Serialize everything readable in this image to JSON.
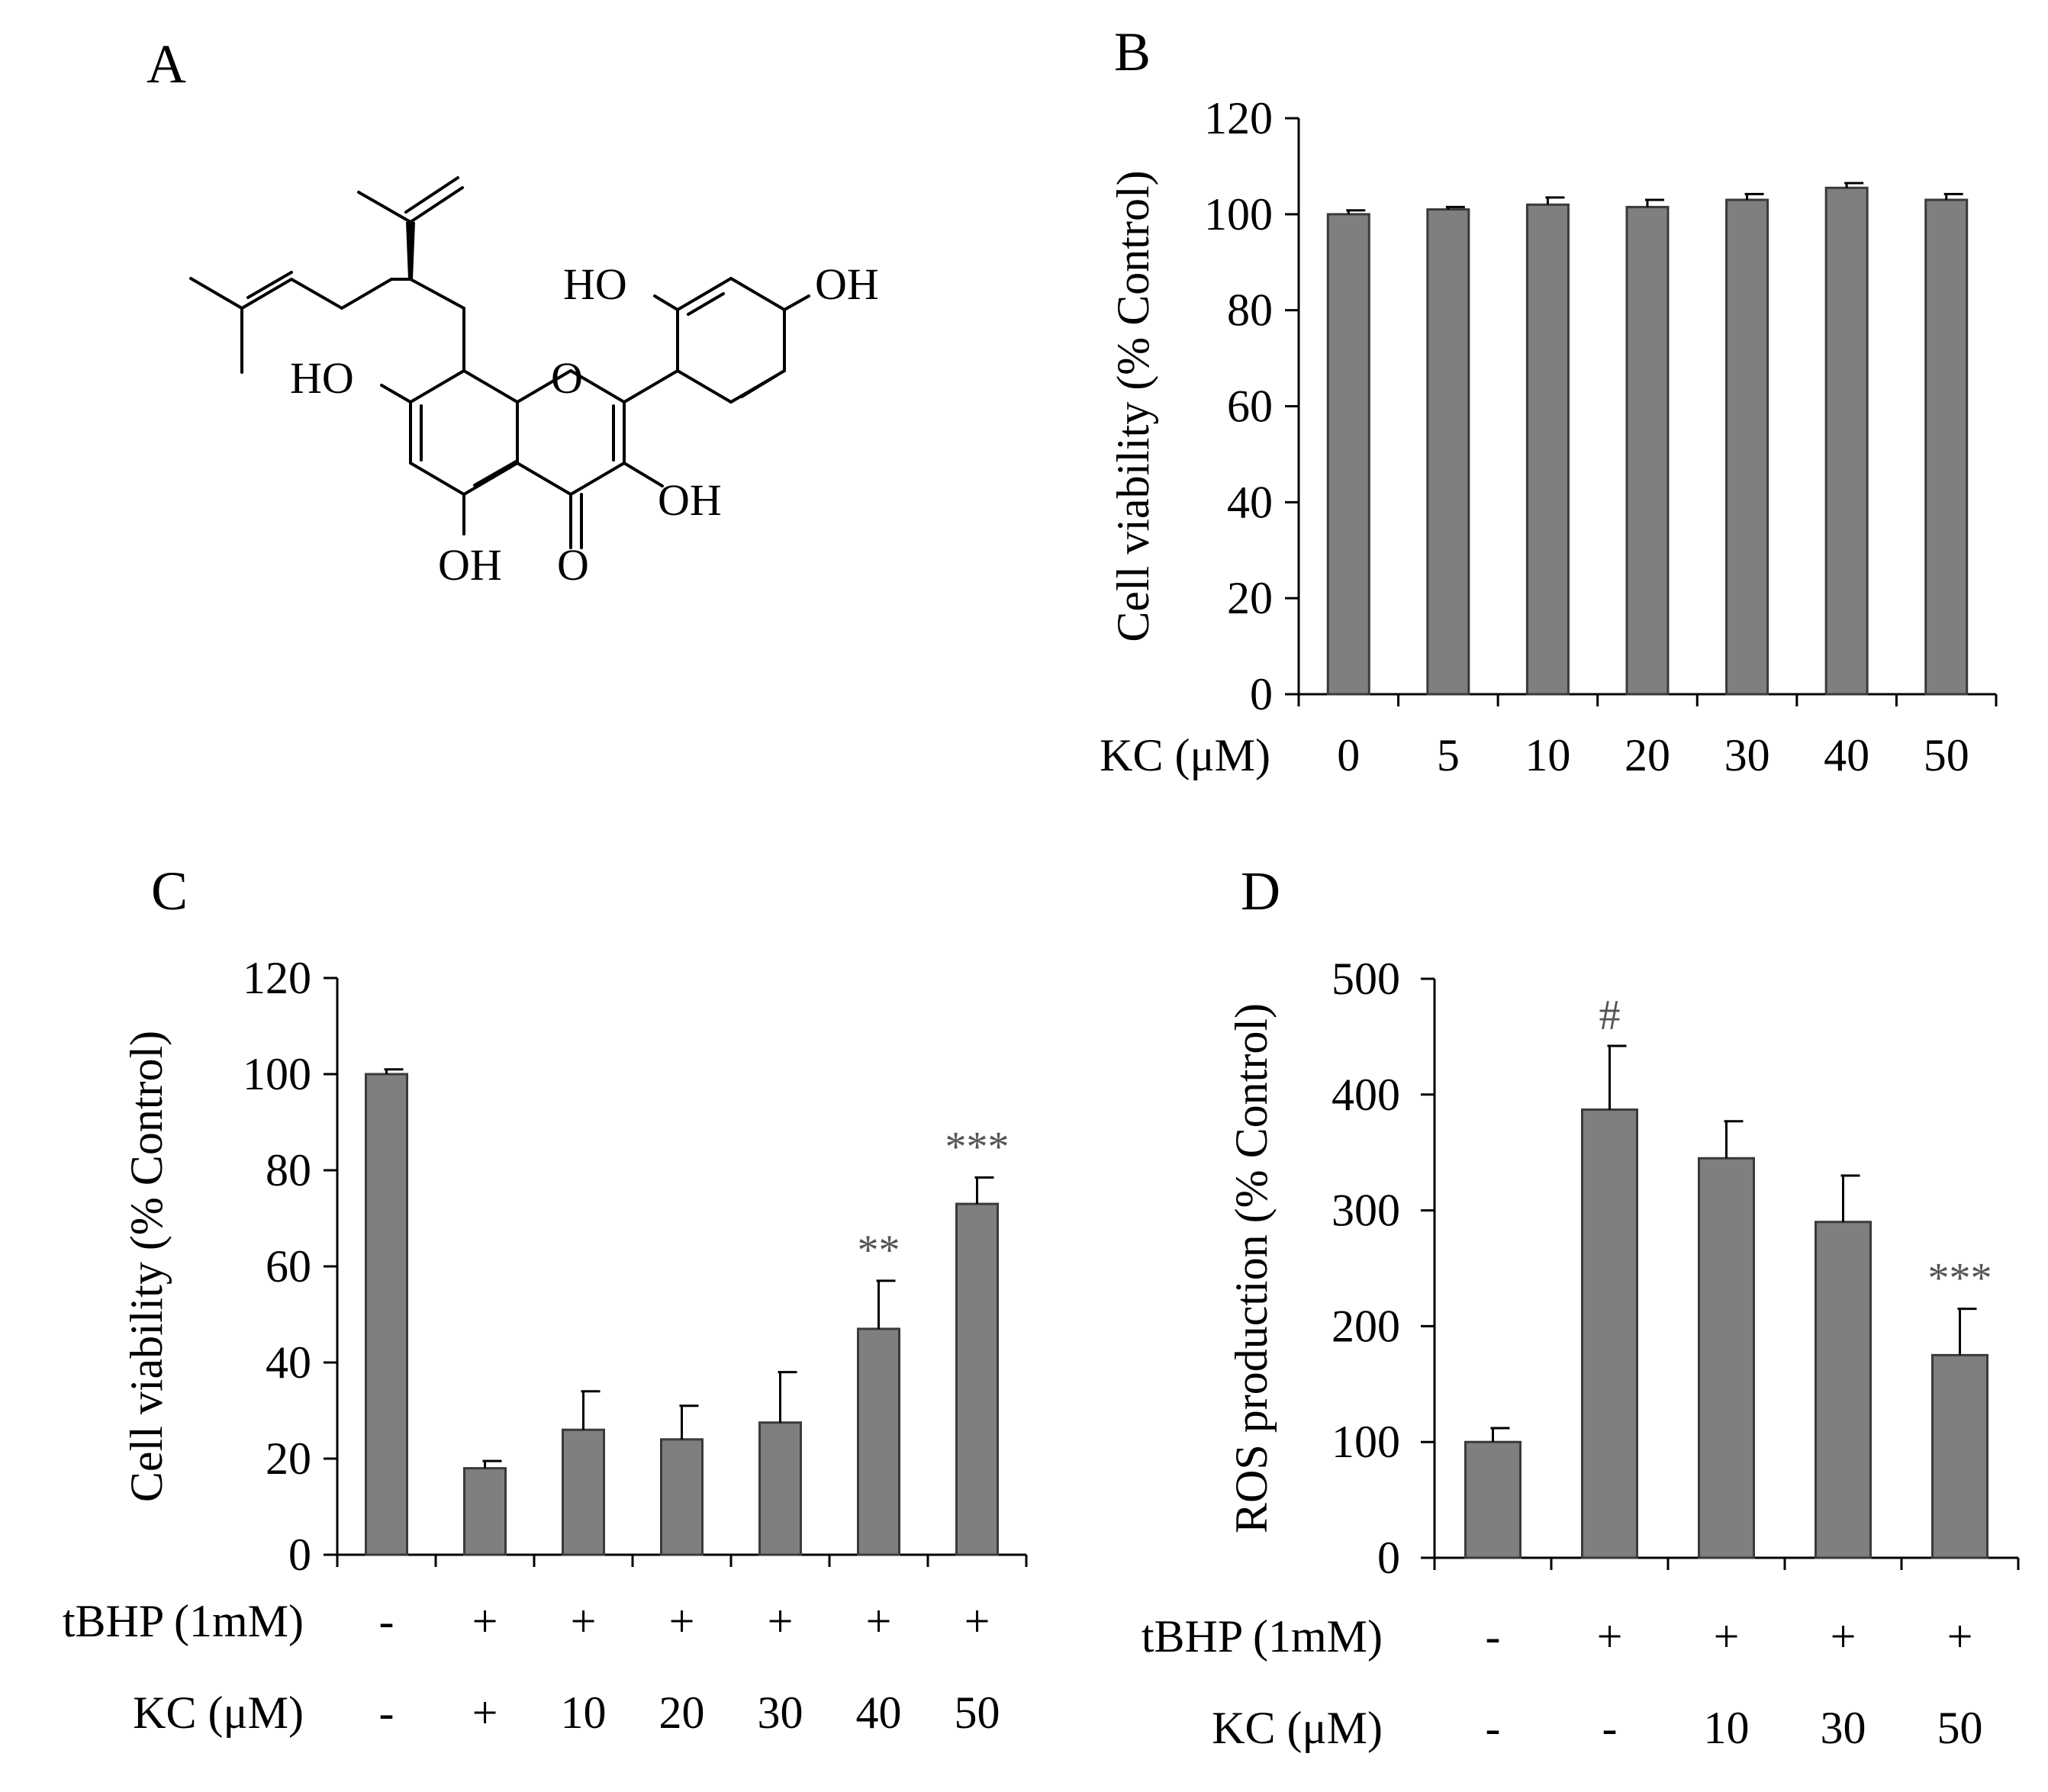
{
  "panels": {
    "A": {
      "letter": "A",
      "structure_labels": [
        "HO",
        "OH",
        "HO",
        "O",
        "OH",
        "OH",
        "O"
      ]
    },
    "B": {
      "letter": "B"
    },
    "C": {
      "letter": "C"
    },
    "D": {
      "letter": "D"
    }
  },
  "colors": {
    "bar": "#7f7f7f",
    "bar_edge": "#3a3a3a",
    "axis": "#000000"
  },
  "chart_data": [
    {
      "panel": "B",
      "type": "bar",
      "ylabel": "Cell viability (% Control)",
      "ylim": [
        0,
        120
      ],
      "yticks": [
        0,
        20,
        40,
        60,
        80,
        100,
        120
      ],
      "row_labels": [
        "KC (μM)"
      ],
      "rows": [
        [
          "0",
          "5",
          "10",
          "20",
          "30",
          "40",
          "50"
        ]
      ],
      "values": [
        100,
        101,
        102,
        101.5,
        103,
        105.5,
        103
      ],
      "errors": [
        0.8,
        0.5,
        1.5,
        1.5,
        1.2,
        1,
        1.2
      ],
      "annotations": [
        "",
        "",
        "",
        "",
        "",
        "",
        ""
      ]
    },
    {
      "panel": "C",
      "type": "bar",
      "ylabel": "Cell viability (% Control)",
      "ylim": [
        0,
        120
      ],
      "yticks": [
        0,
        20,
        40,
        60,
        80,
        100,
        120
      ],
      "row_labels": [
        "tBHP (1mM)",
        "KC (μM)"
      ],
      "rows": [
        [
          "-",
          "+",
          "+",
          "+",
          "+",
          "+",
          "+"
        ],
        [
          "-",
          "+",
          "10",
          "20",
          "30",
          "40",
          "50"
        ]
      ],
      "values": [
        100,
        18,
        26,
        24,
        27.5,
        47,
        73
      ],
      "errors": [
        1,
        1.5,
        8,
        7,
        10.5,
        10,
        5.5
      ],
      "annotations": [
        "",
        "",
        "",
        "",
        "",
        "**",
        "***"
      ]
    },
    {
      "panel": "D",
      "type": "bar",
      "ylabel": "ROS production (% Control)",
      "ylim": [
        0,
        500
      ],
      "yticks": [
        0,
        100,
        200,
        300,
        400,
        500
      ],
      "row_labels": [
        "tBHP (1mM)",
        "KC (μM)"
      ],
      "rows": [
        [
          "-",
          "+",
          "+",
          "+",
          "+"
        ],
        [
          "-",
          "-",
          "10",
          "30",
          "50"
        ]
      ],
      "values": [
        100,
        387,
        345,
        290,
        175
      ],
      "errors": [
        12,
        55,
        32,
        40,
        40
      ],
      "annotations": [
        "",
        "#",
        "",
        "",
        "***"
      ]
    }
  ]
}
